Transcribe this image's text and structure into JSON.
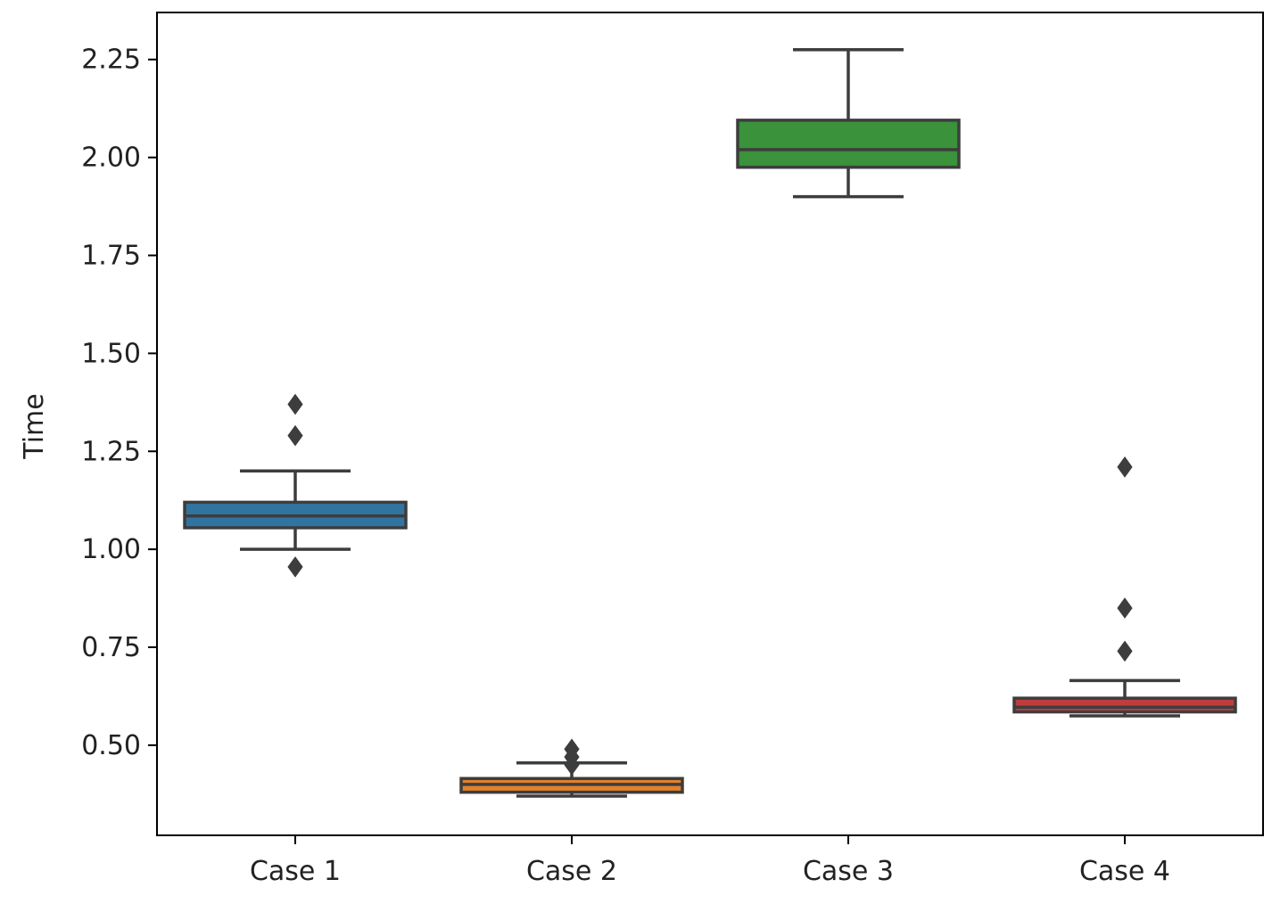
{
  "chart_data": {
    "type": "boxplot",
    "title": "",
    "xlabel": "",
    "ylabel": "Time",
    "ylim": [
      0.27,
      2.37
    ],
    "yticks": [
      0.5,
      0.75,
      1.0,
      1.25,
      1.5,
      1.75,
      2.0,
      2.25
    ],
    "ytick_labels": [
      "0.50",
      "0.75",
      "1.00",
      "1.25",
      "1.50",
      "1.75",
      "2.00",
      "2.25"
    ],
    "grid": false,
    "legend": "none",
    "categories": [
      "Case 1",
      "Case 2",
      "Case 3",
      "Case 4"
    ],
    "boxes": [
      {
        "category": "Case 1",
        "color": "#3274a1",
        "whisker_low": 1.0,
        "q1": 1.055,
        "median": 1.085,
        "q3": 1.12,
        "whisker_high": 1.2,
        "outliers": [
          1.37,
          1.29,
          0.955
        ]
      },
      {
        "category": "Case 2",
        "color": "#e1812c",
        "whisker_low": 0.37,
        "q1": 0.38,
        "median": 0.4,
        "q3": 0.415,
        "whisker_high": 0.455,
        "outliers": [
          0.49,
          0.47,
          0.45
        ]
      },
      {
        "category": "Case 3",
        "color": "#3a923a",
        "whisker_low": 1.9,
        "q1": 1.975,
        "median": 2.02,
        "q3": 2.095,
        "whisker_high": 2.275,
        "outliers": []
      },
      {
        "category": "Case 4",
        "color": "#c03d3e",
        "whisker_low": 0.575,
        "q1": 0.585,
        "median": 0.597,
        "q3": 0.62,
        "whisker_high": 0.665,
        "outliers": [
          1.21,
          0.85,
          0.74
        ]
      }
    ],
    "line_color": "#3d3d3d"
  }
}
